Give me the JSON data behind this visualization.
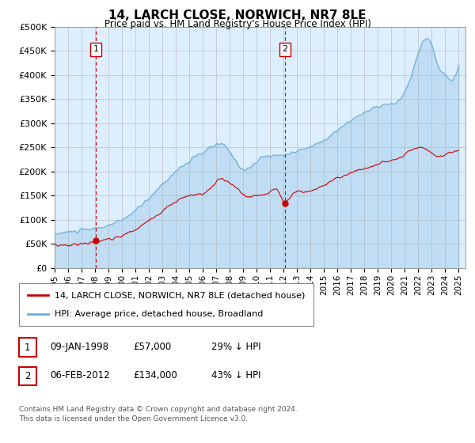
{
  "title": "14, LARCH CLOSE, NORWICH, NR7 8LE",
  "subtitle": "Price paid vs. HM Land Registry's House Price Index (HPI)",
  "legend_line1": "14, LARCH CLOSE, NORWICH, NR7 8LE (detached house)",
  "legend_line2": "HPI: Average price, detached house, Broadland",
  "footnote1": "Contains HM Land Registry data © Crown copyright and database right 2024.",
  "footnote2": "This data is licensed under the Open Government Licence v3.0.",
  "sale1_date": "09-JAN-1998",
  "sale1_price": 57000,
  "sale1_label": "29% ↓ HPI",
  "sale2_date": "06-FEB-2012",
  "sale2_price": 134000,
  "sale2_label": "43% ↓ HPI",
  "sale1_x": 1998.05,
  "sale2_x": 2012.09,
  "hpi_color": "#6baed6",
  "price_color": "#cc0000",
  "dashed_color": "#cc0000",
  "background_color": "#ddeeff",
  "ylim": [
    0,
    500000
  ],
  "xlim": [
    1995.0,
    2025.5
  ],
  "yticks": [
    0,
    50000,
    100000,
    150000,
    200000,
    250000,
    300000,
    350000,
    400000,
    450000,
    500000
  ],
  "xticks": [
    1995,
    1996,
    1997,
    1998,
    1999,
    2000,
    2001,
    2002,
    2003,
    2004,
    2005,
    2006,
    2007,
    2008,
    2009,
    2010,
    2011,
    2012,
    2013,
    2014,
    2015,
    2016,
    2017,
    2018,
    2019,
    2020,
    2021,
    2022,
    2023,
    2024,
    2025
  ]
}
